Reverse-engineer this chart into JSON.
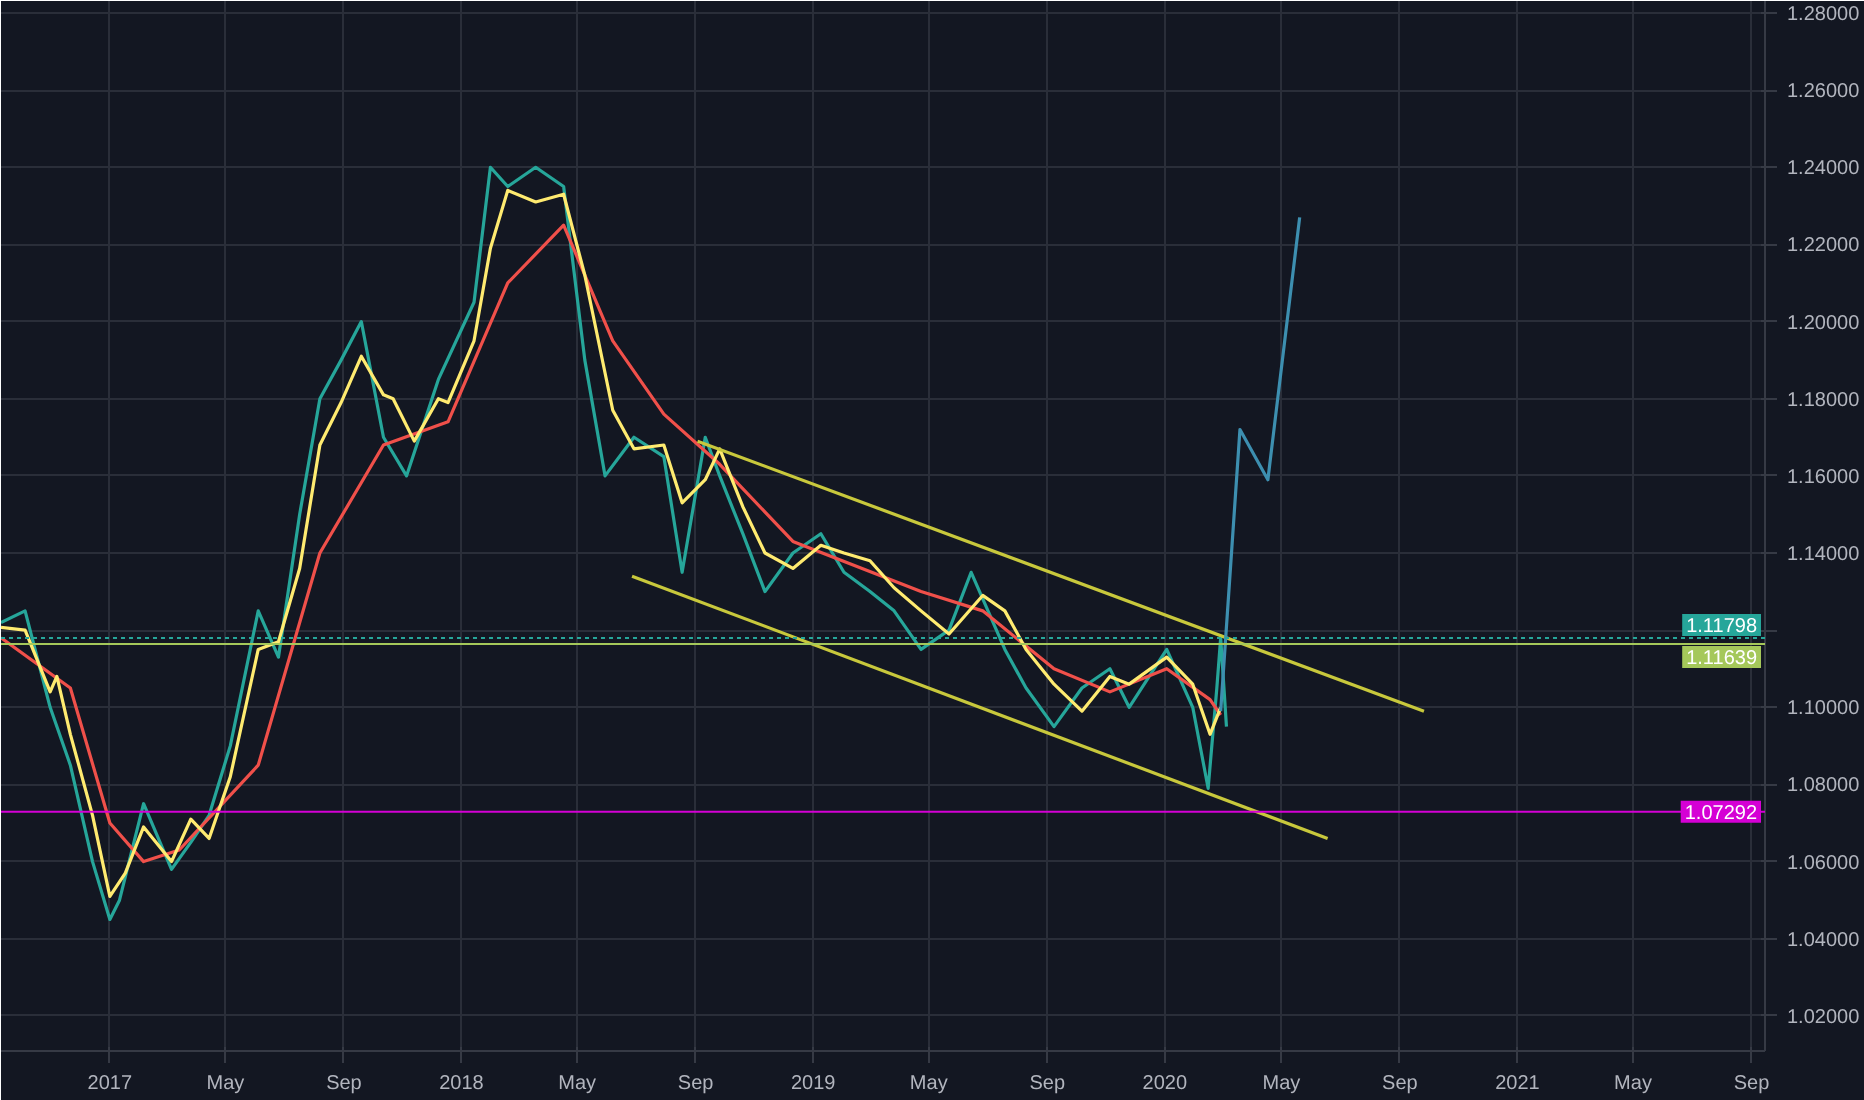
{
  "chart_data": {
    "type": "line",
    "marker": "none",
    "grid": true,
    "xlim": [
      "2016-09-10",
      "2021-09-15"
    ],
    "ylim": [
      1.0109,
      1.2831
    ],
    "xticks": [
      {
        "value": "2017-01-01",
        "label": "2017"
      },
      {
        "value": "2017-05-01",
        "label": "May"
      },
      {
        "value": "2017-09-01",
        "label": "Sep"
      },
      {
        "value": "2018-01-01",
        "label": "2018"
      },
      {
        "value": "2018-05-01",
        "label": "May"
      },
      {
        "value": "2018-09-01",
        "label": "Sep"
      },
      {
        "value": "2019-01-01",
        "label": "2019"
      },
      {
        "value": "2019-05-01",
        "label": "May"
      },
      {
        "value": "2019-09-01",
        "label": "Sep"
      },
      {
        "value": "2020-01-01",
        "label": "2020"
      },
      {
        "value": "2020-05-01",
        "label": "May"
      },
      {
        "value": "2020-09-01",
        "label": "Sep"
      },
      {
        "value": "2021-01-01",
        "label": "2021"
      },
      {
        "value": "2021-05-01",
        "label": "May"
      },
      {
        "value": "2021-09-01",
        "label": "Sep"
      }
    ],
    "yticks": [
      {
        "value": 1.02,
        "label": "1.02000"
      },
      {
        "value": 1.04,
        "label": "1.04000"
      },
      {
        "value": 1.06,
        "label": "1.06000"
      },
      {
        "value": 1.08,
        "label": "1.08000"
      },
      {
        "value": 1.1,
        "label": "1.10000"
      },
      {
        "value": 1.12,
        "label": null
      },
      {
        "value": 1.14,
        "label": "1.14000"
      },
      {
        "value": 1.16,
        "label": "1.16000"
      },
      {
        "value": 1.18,
        "label": "1.18000"
      },
      {
        "value": 1.2,
        "label": "1.20000"
      },
      {
        "value": 1.22,
        "label": "1.22000"
      },
      {
        "value": 1.24,
        "label": "1.24000"
      },
      {
        "value": 1.26,
        "label": "1.26000"
      },
      {
        "value": 1.28,
        "label": "1.28000"
      }
    ],
    "ref_lines": [
      {
        "axis": "y",
        "value": 1.11798,
        "label": "1.11798",
        "color": "#26a69a",
        "line_style": "dotted"
      },
      {
        "axis": "y",
        "value": 1.11639,
        "label": "1.11639",
        "color": "#a5c85a",
        "line_style": "solid"
      },
      {
        "axis": "y",
        "value": 1.07292,
        "label": "1.07292",
        "color": "#d500d5",
        "line_style": "solid"
      }
    ],
    "series": [
      {
        "color": "#26a69a",
        "x": [
          "2016-09-10",
          "2016-10-05",
          "2016-10-31",
          "2016-11-21",
          "2016-12-14",
          "2017-01-01",
          "2017-01-11",
          "2017-02-05",
          "2017-03-06",
          "2017-03-26",
          "2017-04-14",
          "2017-05-06",
          "2017-06-04",
          "2017-06-25",
          "2017-07-17",
          "2017-08-07",
          "2017-08-29",
          "2017-09-19",
          "2017-10-12",
          "2017-11-05",
          "2017-12-08",
          "2018-01-14",
          "2018-01-31",
          "2018-02-18",
          "2018-03-19",
          "2018-04-17",
          "2018-05-09",
          "2018-05-30",
          "2018-06-29",
          "2018-07-30",
          "2018-08-18",
          "2018-09-11",
          "2018-09-26",
          "2018-10-20",
          "2018-11-12",
          "2018-12-11",
          "2019-01-09",
          "2019-02-02",
          "2019-03-01",
          "2019-03-26",
          "2019-04-23",
          "2019-05-22",
          "2019-06-14",
          "2019-07-19",
          "2019-08-10",
          "2019-09-08",
          "2019-10-07",
          "2019-11-05",
          "2019-11-25",
          "2020-01-03",
          "2020-01-30",
          "2020-02-15",
          "2020-02-24",
          "2020-02-28",
          "2020-03-05"
        ],
        "values": [
          1.122,
          1.125,
          1.1,
          1.085,
          1.06,
          1.045,
          1.05,
          1.075,
          1.058,
          1.065,
          1.072,
          1.09,
          1.125,
          1.113,
          1.15,
          1.18,
          1.19,
          1.2,
          1.17,
          1.16,
          1.185,
          1.205,
          1.24,
          1.235,
          1.24,
          1.235,
          1.19,
          1.16,
          1.17,
          1.165,
          1.135,
          1.17,
          1.16,
          1.145,
          1.13,
          1.14,
          1.145,
          1.135,
          1.13,
          1.125,
          1.115,
          1.12,
          1.135,
          1.115,
          1.105,
          1.095,
          1.105,
          1.11,
          1.1,
          1.115,
          1.1,
          1.079,
          1.105,
          1.118,
          1.095
        ]
      },
      {
        "color": "#f0504a",
        "x": [
          "2016-09-10",
          "2016-11-21",
          "2017-01-01",
          "2017-02-05",
          "2017-03-14",
          "2017-06-04",
          "2017-08-07",
          "2017-10-12",
          "2017-12-18",
          "2018-02-18",
          "2018-04-17",
          "2018-06-07",
          "2018-07-30",
          "2018-09-26",
          "2018-12-11",
          "2019-04-23",
          "2019-06-26",
          "2019-09-08",
          "2019-11-05",
          "2020-01-03",
          "2020-02-17",
          "2020-02-28"
        ],
        "values": [
          1.118,
          1.105,
          1.07,
          1.06,
          1.063,
          1.085,
          1.14,
          1.168,
          1.174,
          1.21,
          1.225,
          1.195,
          1.176,
          1.163,
          1.143,
          1.13,
          1.125,
          1.11,
          1.104,
          1.11,
          1.102,
          1.098
        ]
      },
      {
        "color": "#ffeb70",
        "x": [
          "2016-09-10",
          "2016-10-05",
          "2016-10-31",
          "2016-11-07",
          "2016-11-21",
          "2016-12-14",
          "2017-01-01",
          "2017-01-17",
          "2017-02-05",
          "2017-03-06",
          "2017-03-26",
          "2017-04-14",
          "2017-05-06",
          "2017-06-04",
          "2017-06-25",
          "2017-07-17",
          "2017-08-07",
          "2017-08-29",
          "2017-09-19",
          "2017-10-12",
          "2017-10-22",
          "2017-11-13",
          "2017-12-08",
          "2017-12-18",
          "2018-01-14",
          "2018-01-31",
          "2018-02-18",
          "2018-03-19",
          "2018-04-17",
          "2018-05-09",
          "2018-06-07",
          "2018-06-29",
          "2018-07-30",
          "2018-08-18",
          "2018-09-11",
          "2018-09-26",
          "2018-10-20",
          "2018-11-12",
          "2018-12-11",
          "2019-01-09",
          "2019-02-02",
          "2019-03-01",
          "2019-03-26",
          "2019-04-23",
          "2019-05-22",
          "2019-06-26",
          "2019-07-19",
          "2019-08-10",
          "2019-09-08",
          "2019-10-07",
          "2019-11-05",
          "2019-11-25",
          "2020-01-03",
          "2020-01-30",
          "2020-02-17",
          "2020-02-28"
        ],
        "values": [
          1.1207,
          1.12,
          1.104,
          1.108,
          1.093,
          1.072,
          1.051,
          1.057,
          1.069,
          1.06,
          1.071,
          1.066,
          1.082,
          1.115,
          1.117,
          1.136,
          1.168,
          1.179,
          1.191,
          1.181,
          1.18,
          1.169,
          1.18,
          1.179,
          1.195,
          1.219,
          1.234,
          1.231,
          1.233,
          1.212,
          1.177,
          1.167,
          1.168,
          1.153,
          1.159,
          1.167,
          1.152,
          1.14,
          1.136,
          1.142,
          1.14,
          1.138,
          1.131,
          1.125,
          1.119,
          1.129,
          1.125,
          1.115,
          1.106,
          1.099,
          1.108,
          1.106,
          1.113,
          1.106,
          1.093,
          1.1
        ]
      },
      {
        "color": "#c8c83c",
        "x": [
          "2018-09-03",
          "2020-09-26"
        ],
        "values": [
          1.169,
          1.099
        ]
      },
      {
        "color": "#c8c83c",
        "x": [
          "2018-06-27",
          "2020-06-18"
        ],
        "values": [
          1.134,
          1.066
        ]
      },
      {
        "color": "#3d8fb0",
        "x": [
          "2020-02-28",
          "2020-03-19",
          "2020-04-17",
          "2020-05-20"
        ],
        "values": [
          1.099,
          1.172,
          1.159,
          1.227
        ]
      }
    ]
  }
}
